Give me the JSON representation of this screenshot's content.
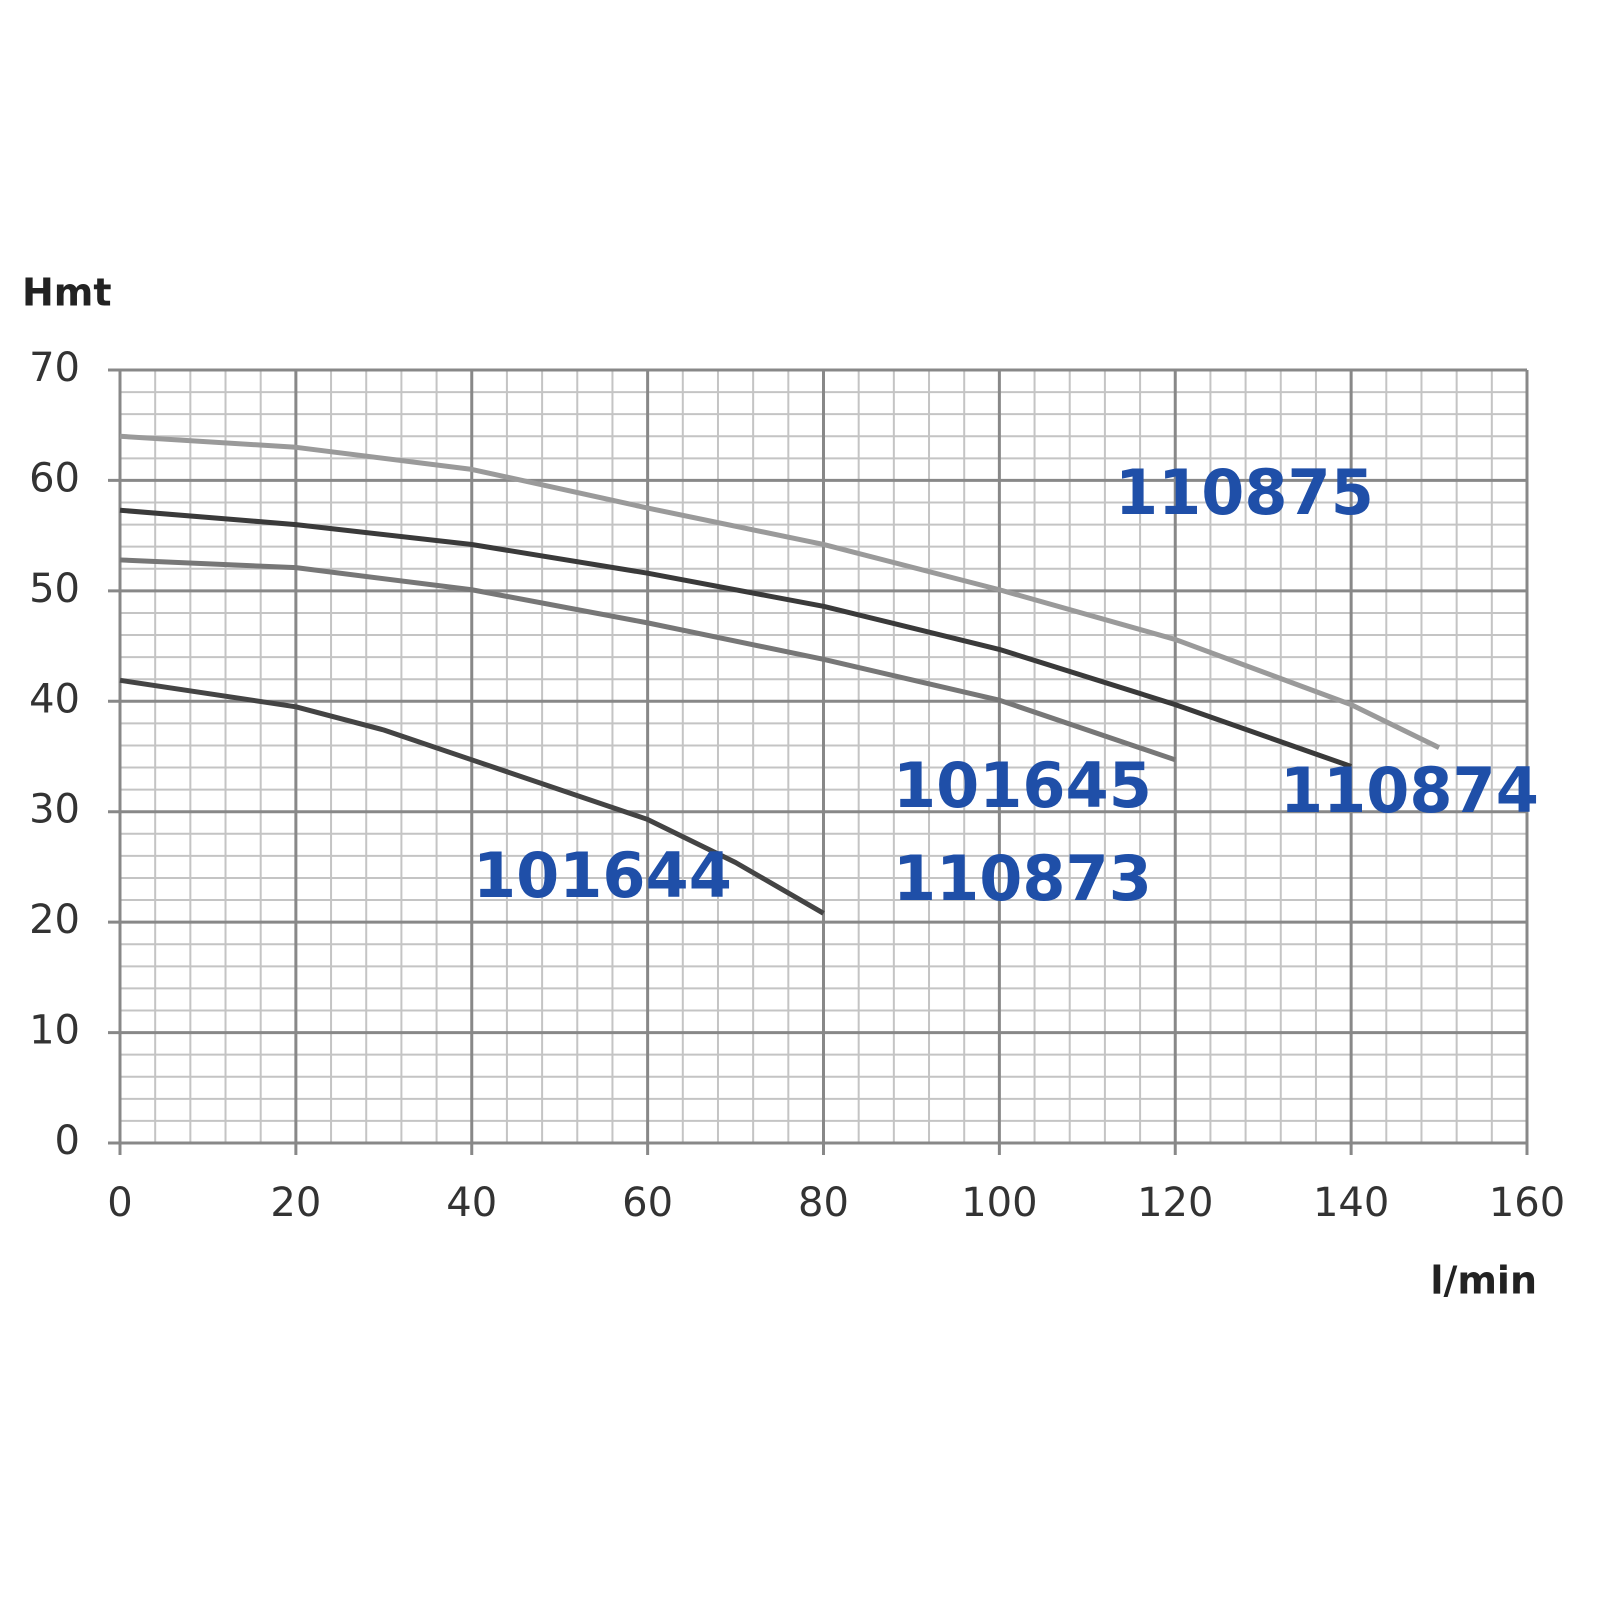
{
  "chart_data": {
    "type": "line",
    "y_label": "Hmt",
    "x_label": "l/min",
    "xlim": [
      0,
      160
    ],
    "xticks": [
      0,
      20,
      40,
      60,
      80,
      100,
      120,
      140,
      160
    ],
    "ylim": [
      0,
      70
    ],
    "yticks": [
      0,
      10,
      20,
      30,
      40,
      50,
      60,
      70
    ],
    "grid": true,
    "xminorticks": [
      4,
      8,
      12,
      16,
      24,
      28,
      32,
      36,
      44,
      48,
      52,
      56,
      64,
      68,
      72,
      76,
      84,
      88,
      92,
      96,
      104,
      108,
      112,
      116,
      124,
      128,
      132,
      136,
      144,
      148,
      152,
      156
    ],
    "yminorticks": [
      2,
      4,
      6,
      8,
      12,
      14,
      16,
      18,
      22,
      24,
      26,
      28,
      32,
      34,
      36,
      38,
      42,
      44,
      46,
      48,
      52,
      54,
      56,
      58,
      62,
      64,
      66,
      68
    ],
    "label_color": "#1f4fa8",
    "series": [
      {
        "labels": [
          "110875"
        ],
        "color": "#9a9a9a",
        "x": [
          0,
          20,
          40,
          60,
          80,
          100,
          120,
          140,
          150
        ],
        "values": [
          64,
          63,
          61,
          57.5,
          54.2,
          50.1,
          45.6,
          39.7,
          35.8
        ]
      },
      {
        "labels": [
          "110874"
        ],
        "color": "#3a3a3a",
        "x": [
          0,
          20,
          40,
          60,
          80,
          100,
          120,
          140
        ],
        "values": [
          57.3,
          56,
          54.2,
          51.6,
          48.6,
          44.7,
          39.7,
          34.1
        ]
      },
      {
        "labels": [
          "101645",
          "110873"
        ],
        "color": "#777777",
        "x": [
          0,
          20,
          40,
          60,
          80,
          100,
          120
        ],
        "values": [
          52.8,
          52.1,
          50.1,
          47.1,
          43.8,
          40.1,
          34.7
        ]
      },
      {
        "labels": [
          "101644"
        ],
        "color": "#444444",
        "x": [
          0,
          20,
          30,
          40,
          60,
          70,
          80
        ],
        "values": [
          41.9,
          39.5,
          37.4,
          34.7,
          29.3,
          25.4,
          20.8
        ]
      }
    ]
  }
}
